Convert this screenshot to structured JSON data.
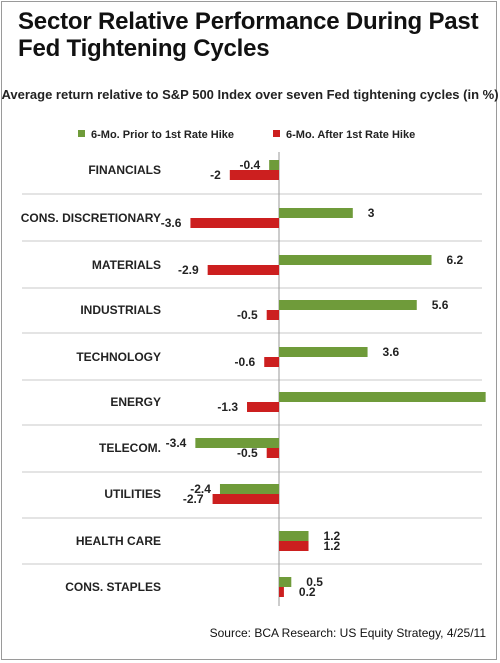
{
  "title": "Sector Relative Performance During Past Fed Tightening Cycles",
  "source": "Source: BCA Research: US Equity Strategy, 4/25/11",
  "chart_data": {
    "type": "bar",
    "orientation": "horizontal",
    "title": "Average return relative to S&P 500 Index over seven Fed tightening cycles (in %)",
    "categories": [
      "FINANCIALS",
      "CONS. DISCRETIONARY",
      "MATERIALS",
      "INDUSTRIALS",
      "TECHNOLOGY",
      "ENERGY",
      "TELECOM.",
      "UTILITIES",
      "HEALTH CARE",
      "CONS. STAPLES"
    ],
    "series": [
      {
        "name": "6-Mo. Prior to 1st Rate Hike",
        "color": "#6f9b3a",
        "values": [
          -0.4,
          3,
          6.2,
          5.6,
          3.6,
          8.4,
          -3.4,
          -2.4,
          1.2,
          0.5
        ]
      },
      {
        "name": "6-Mo. After 1st Rate Hike",
        "color": "#cc1f1f",
        "values": [
          -2,
          -3.6,
          -2.9,
          -0.5,
          -0.6,
          -1.3,
          -0.5,
          -2.7,
          1.2,
          0.2
        ]
      }
    ],
    "legend": "top",
    "grid": false
  }
}
